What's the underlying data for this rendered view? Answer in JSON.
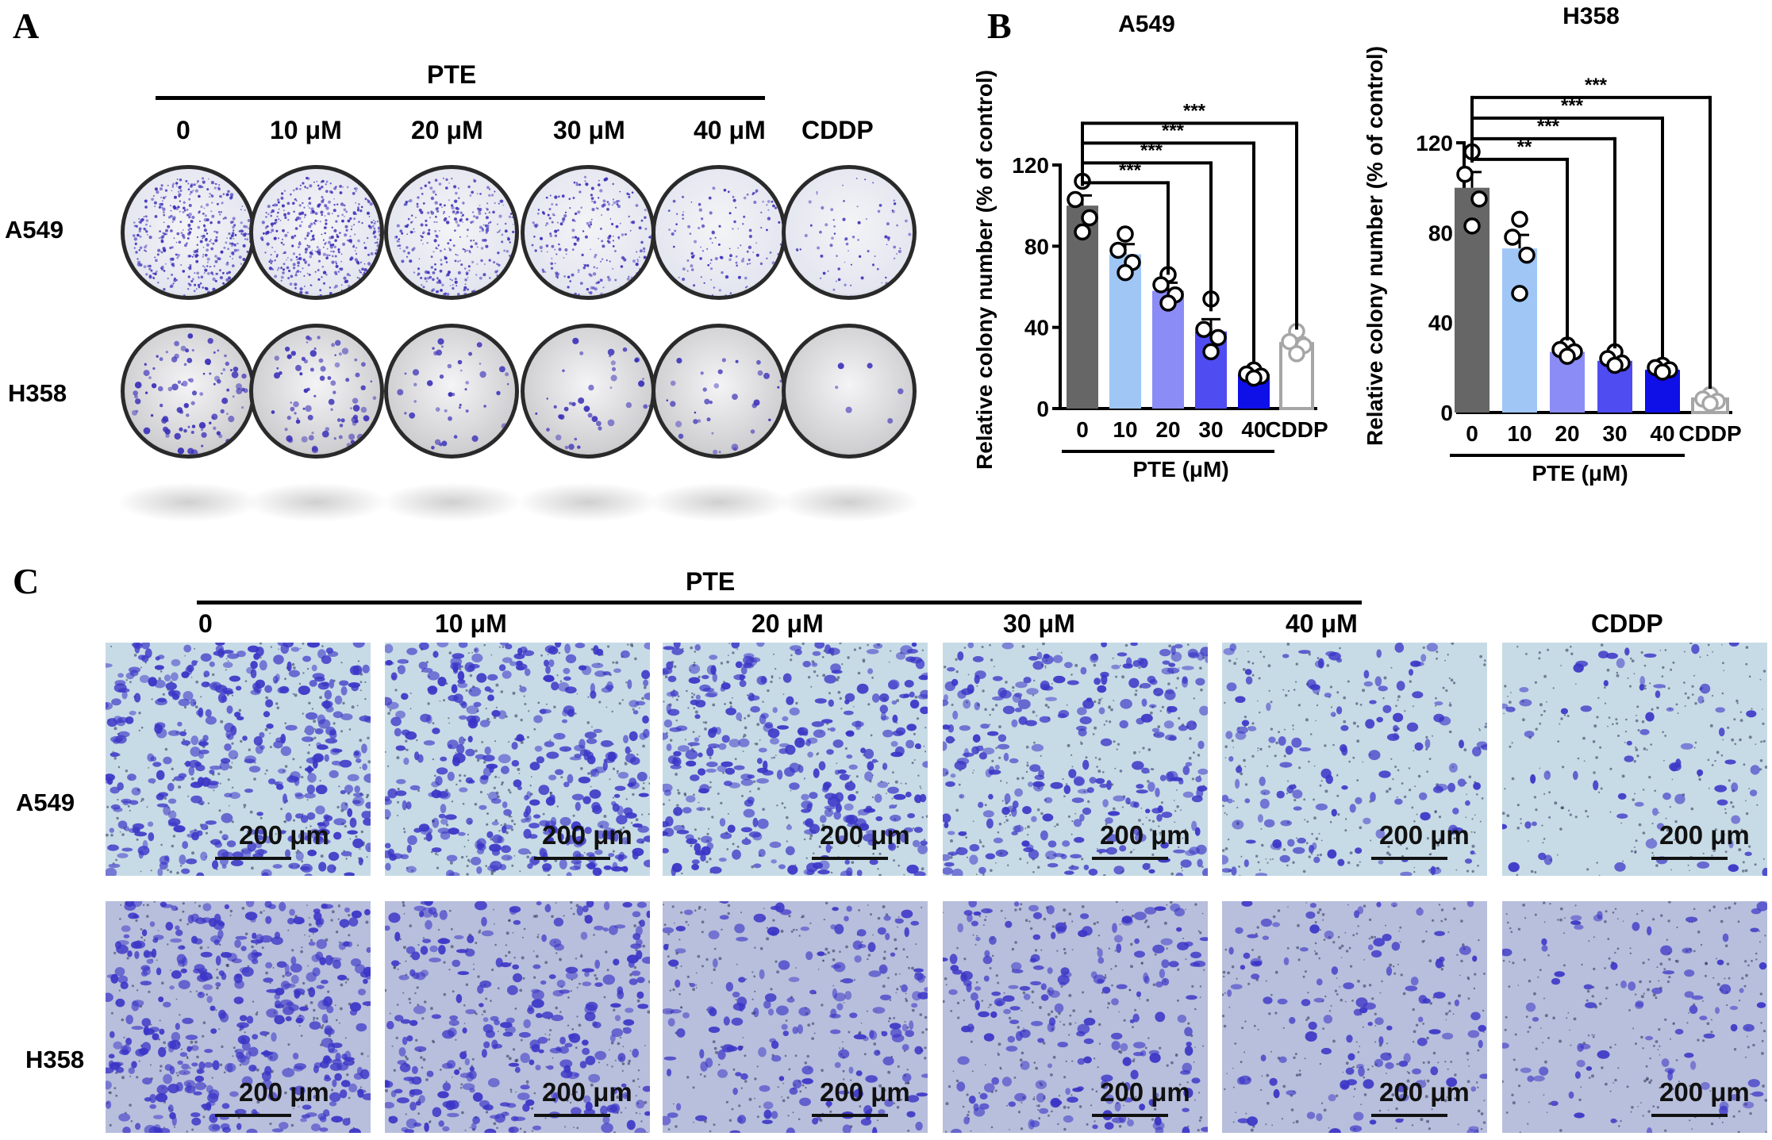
{
  "panels": {
    "a": {
      "letter": "A",
      "treatment": "PTE",
      "conditions": [
        "0",
        "10 μM",
        "20 μM",
        "30 μM",
        "40 μM",
        "CDDP"
      ],
      "rows": [
        "A549",
        "H358"
      ]
    },
    "b": {
      "letter": "B"
    },
    "c": {
      "letter": "C",
      "treatment": "PTE",
      "conditions": [
        "0",
        "10 μM",
        "20 μM",
        "30 μM",
        "40 μM",
        "CDDP"
      ],
      "rows": [
        "A549",
        "H358"
      ],
      "scale_bar": "200 μm"
    }
  },
  "colors": {
    "bar_0": "#666666",
    "bar_10": "#9fc6f5",
    "bar_20": "#8c8cf7",
    "bar_30": "#4f4cf2",
    "bar_40": "#0f0fe8",
    "bar_cddp": "#ffffff",
    "cddp_outline": "#a6a6a6",
    "dish_a549": "#e4e6f0",
    "dish_h358": "#cfcfd2",
    "stain": "#3a2fb8",
    "micro_a549_bg": "#c7dbe6",
    "micro_h358_bg": "#b8bfdc"
  },
  "chart_data": [
    {
      "type": "bar",
      "title": "A549",
      "ylabel": "Relative colony number (% of control)",
      "xlabel": "PTE (μM)",
      "categories": [
        "0",
        "10",
        "20",
        "30",
        "40",
        "CDDP"
      ],
      "values": [
        100,
        76,
        58,
        38,
        17,
        32
      ],
      "errors": [
        5,
        5,
        4,
        6,
        2,
        3
      ],
      "points": [
        [
          112,
          103,
          94,
          87
        ],
        [
          86,
          78,
          72,
          67
        ],
        [
          66,
          61,
          56,
          52
        ],
        [
          54,
          39,
          35,
          28
        ],
        [
          19,
          17,
          16,
          15
        ],
        [
          38,
          33,
          31,
          27
        ]
      ],
      "ylim": [
        0,
        120
      ],
      "yticks": [
        0,
        40,
        80,
        120
      ],
      "significance": [
        {
          "compare": [
            "0",
            "20"
          ],
          "label": "***"
        },
        {
          "compare": [
            "0",
            "30"
          ],
          "label": "***"
        },
        {
          "compare": [
            "0",
            "40"
          ],
          "label": "***"
        },
        {
          "compare": [
            "0",
            "CDDP"
          ],
          "label": "***"
        }
      ]
    },
    {
      "type": "bar",
      "title": "H358",
      "ylabel": "Relative colony number (% of control)",
      "xlabel": "PTE (μM)",
      "categories": [
        "0",
        "10",
        "20",
        "30",
        "40",
        "CDDP"
      ],
      "values": [
        100,
        73,
        27,
        23,
        19,
        6
      ],
      "errors": [
        7,
        6,
        1.5,
        2,
        2,
        1
      ],
      "points": [
        [
          116,
          106,
          95,
          83
        ],
        [
          86,
          78,
          70,
          53
        ],
        [
          30,
          28,
          27,
          25
        ],
        [
          27,
          24,
          22,
          21
        ],
        [
          21,
          20,
          19,
          18
        ],
        [
          8,
          6,
          5,
          4
        ]
      ],
      "ylim": [
        0,
        120
      ],
      "yticks": [
        0,
        40,
        80,
        120
      ],
      "significance": [
        {
          "compare": [
            "0",
            "20"
          ],
          "label": "**"
        },
        {
          "compare": [
            "0",
            "30"
          ],
          "label": "***"
        },
        {
          "compare": [
            "0",
            "40"
          ],
          "label": "***"
        },
        {
          "compare": [
            "0",
            "CDDP"
          ],
          "label": "***"
        }
      ]
    }
  ]
}
